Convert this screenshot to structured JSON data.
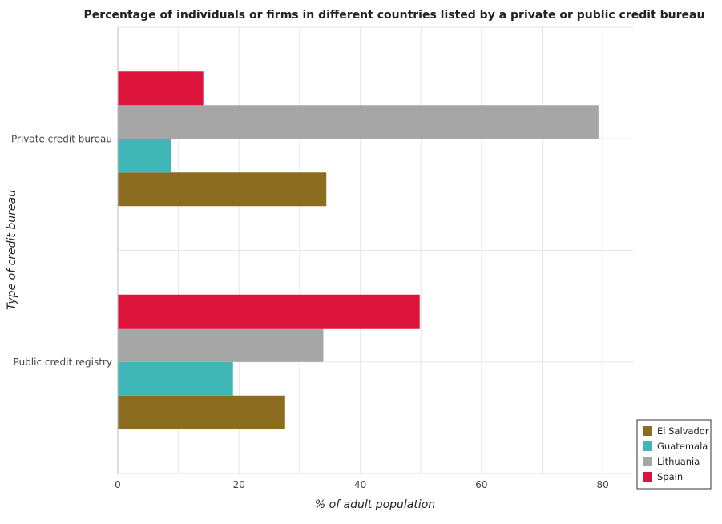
{
  "chart_data": {
    "type": "bar",
    "orientation": "horizontal",
    "title": "Percentage of individuals or firms in different countries listed by a private or public credit bureau",
    "xlabel": "% of adult population",
    "ylabel": "Type of credit bureau",
    "xlim": [
      0,
      85
    ],
    "xticks": [
      0,
      20,
      40,
      60,
      80
    ],
    "grid": true,
    "legend_position": "bottom-right",
    "categories": [
      "Private credit bureau",
      "Public credit registry"
    ],
    "series": [
      {
        "name": "El Salvador",
        "color": "#8c6d1f",
        "values": [
          34.4,
          27.6
        ]
      },
      {
        "name": "Guatemala",
        "color": "#3fb7b7",
        "values": [
          8.8,
          19.0
        ]
      },
      {
        "name": "Lithuania",
        "color": "#a6a6a6",
        "values": [
          79.3,
          33.9
        ]
      },
      {
        "name": "Spain",
        "color": "#dc143c",
        "values": [
          14.1,
          49.8
        ]
      }
    ]
  }
}
